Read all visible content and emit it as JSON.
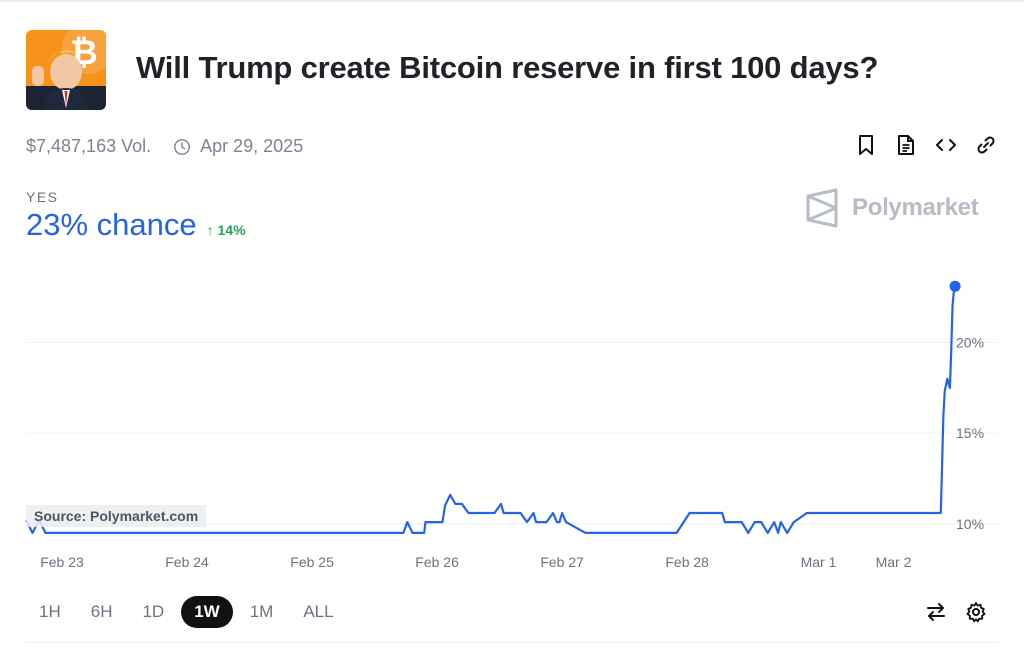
{
  "market": {
    "title": "Will Trump create Bitcoin reserve in first 100 days?",
    "volume": "$7,487,163 Vol.",
    "end_date": "Apr 29, 2025",
    "icon": "market-thumbnail-icon",
    "actions": [
      {
        "name": "bookmark-icon"
      },
      {
        "name": "document-icon"
      },
      {
        "name": "embed-code-icon"
      },
      {
        "name": "link-icon"
      }
    ]
  },
  "headline": {
    "outcome": "YES",
    "chance": "23% chance",
    "delta": "14%",
    "delta_direction": "up",
    "color": "#2563eb",
    "delta_color": "#1fa355"
  },
  "brand": {
    "name": "Polymarket",
    "color": "#b6bcc6"
  },
  "source": "Source: Polymarket.com",
  "range_options": [
    "1H",
    "6H",
    "1D",
    "1W",
    "1M",
    "ALL"
  ],
  "range_selected": "1W",
  "tools": [
    {
      "name": "swap-icon"
    },
    {
      "name": "settings-gear-icon"
    }
  ],
  "chart_data": {
    "type": "line",
    "title": "",
    "xlabel": "",
    "ylabel": "",
    "x_ticks": [
      "Feb 23",
      "Feb 24",
      "Feb 25",
      "Feb 26",
      "Feb 27",
      "Feb 28",
      "Mar 1",
      "Mar 2"
    ],
    "y_ticks": [
      "10%",
      "15%",
      "20%"
    ],
    "y_tick_values": [
      10,
      15,
      20
    ],
    "ylim": [
      9.0,
      24.0
    ],
    "grid": true,
    "series": [
      {
        "color": "#2563eb",
        "x": [
          0,
          0.05,
          0.1,
          0.15,
          0.2,
          0.25,
          1.0,
          2.0,
          2.9,
          2.93,
          2.97,
          3.0,
          3.06,
          3.07,
          3.1,
          3.2,
          3.22,
          3.26,
          3.3,
          3.35,
          3.4,
          3.5,
          3.6,
          3.65,
          3.67,
          3.7,
          3.8,
          3.85,
          3.9,
          3.92,
          3.95,
          4.0,
          4.05,
          4.08,
          4.1,
          4.12,
          4.15,
          4.3,
          4.48,
          4.5,
          4.52,
          4.7,
          4.9,
          5.0,
          5.1,
          5.12,
          5.15,
          5.2,
          5.3,
          5.35,
          5.37,
          5.4,
          5.5,
          5.55,
          5.6,
          5.62,
          5.65,
          5.7,
          5.75,
          5.78,
          5.8,
          5.85,
          5.9,
          6.0,
          6.2,
          6.55,
          6.6,
          6.63,
          6.65,
          6.7,
          6.75,
          6.78,
          6.8,
          6.85,
          6.9,
          6.95,
          7.0,
          7.03,
          7.05,
          7.06,
          7.08,
          7.1,
          7.11,
          7.12,
          7.13,
          7.14
        ],
        "y": [
          10.2,
          9.5,
          10.2,
          9.5,
          9.5,
          9.5,
          9.5,
          9.5,
          9.5,
          10.1,
          9.5,
          9.5,
          9.5,
          10.1,
          10.1,
          10.1,
          11.0,
          11.6,
          11.1,
          11.1,
          10.6,
          10.6,
          10.6,
          11.1,
          10.6,
          10.6,
          10.6,
          10.1,
          10.6,
          10.1,
          10.1,
          10.1,
          10.6,
          10.1,
          10.1,
          10.6,
          10.1,
          9.5,
          9.5,
          9.5,
          9.5,
          9.5,
          9.5,
          9.5,
          10.6,
          10.6,
          10.6,
          10.6,
          10.6,
          10.6,
          10.1,
          10.1,
          10.1,
          9.5,
          10.1,
          10.1,
          10.1,
          9.5,
          10.1,
          9.5,
          10.1,
          9.5,
          10.1,
          10.6,
          10.6,
          10.6,
          10.6,
          10.6,
          10.6,
          10.6,
          10.6,
          10.6,
          10.6,
          10.6,
          10.6,
          10.6,
          10.6,
          10.6,
          16.0,
          17.3,
          18.0,
          17.5,
          19.5,
          22.0,
          22.8,
          23.1
        ]
      }
    ]
  }
}
